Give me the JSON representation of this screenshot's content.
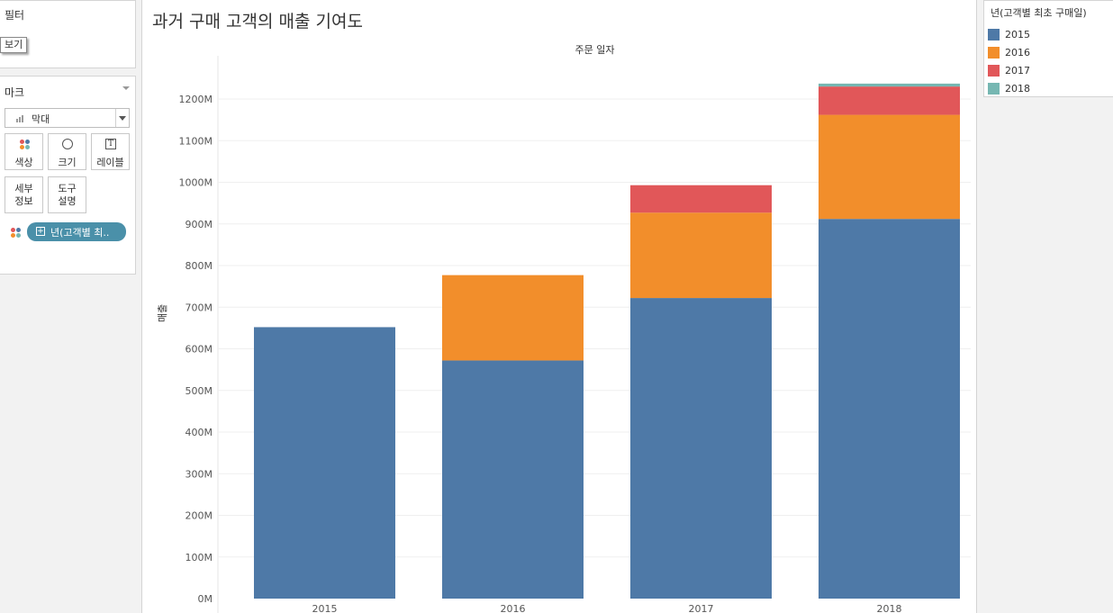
{
  "sheet": {
    "title": "과거 구매 고객의 매출 기여도"
  },
  "filters": {
    "title": "필터",
    "view_tag": "보기"
  },
  "marks": {
    "title": "마크",
    "mark_type": "막대",
    "buttons": {
      "color": "색상",
      "size": "크기",
      "label": "레이블",
      "detail_line1": "세부",
      "detail_line2": "정보",
      "tooltip_line1": "도구",
      "tooltip_line2": "설명"
    },
    "color_pill": "년(고객별 최..",
    "label_icon_glyph": "T"
  },
  "legend": {
    "title": "년(고객별 최초 구매일)",
    "items": [
      {
        "label": "2015",
        "color": "#4e79a7"
      },
      {
        "label": "2016",
        "color": "#f28e2b"
      },
      {
        "label": "2017",
        "color": "#e15759"
      },
      {
        "label": "2018",
        "color": "#76b7b2"
      }
    ]
  },
  "chart_data": {
    "type": "bar",
    "stacked": true,
    "x_header": "주문 일자",
    "ylabel": "매출",
    "categories": [
      "2015",
      "2016",
      "2017",
      "2018"
    ],
    "series": [
      {
        "name": "2015",
        "color": "#4e79a7",
        "values": [
          652,
          572,
          722,
          912
        ]
      },
      {
        "name": "2016",
        "color": "#f28e2b",
        "values": [
          0,
          205,
          205,
          250
        ]
      },
      {
        "name": "2017",
        "color": "#e15759",
        "values": [
          0,
          0,
          66,
          68
        ]
      },
      {
        "name": "2018",
        "color": "#76b7b2",
        "values": [
          0,
          0,
          0,
          7
        ]
      }
    ],
    "ylim": [
      0,
      1250
    ],
    "yticks": [
      0,
      100,
      200,
      300,
      400,
      500,
      600,
      700,
      800,
      900,
      1000,
      1100,
      1200
    ],
    "ytick_labels": [
      "0M",
      "100M",
      "200M",
      "300M",
      "400M",
      "500M",
      "600M",
      "700M",
      "800M",
      "900M",
      "1000M",
      "1100M",
      "1200M"
    ],
    "grid": true
  }
}
